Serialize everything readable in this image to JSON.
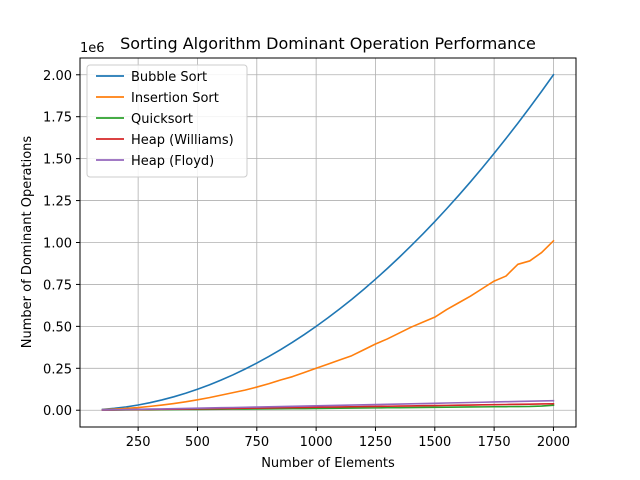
{
  "chart_data": {
    "type": "line",
    "title": "Sorting Algorithm Dominant Operation Performance",
    "xlabel": "Number of Elements",
    "ylabel": "Number of Dominant Operations",
    "y_offset_label": "1e6",
    "xlim": [
      5,
      2095
    ],
    "ylim": [
      -0.1,
      2.1
    ],
    "y_scale_factor": 1000000,
    "xticks": [
      250,
      500,
      750,
      1000,
      1250,
      1500,
      1750,
      2000
    ],
    "xtick_labels": [
      "250",
      "500",
      "750",
      "1000",
      "1250",
      "1500",
      "1750",
      "2000"
    ],
    "yticks": [
      0,
      0.25,
      0.5,
      0.75,
      1.0,
      1.25,
      1.5,
      1.75,
      2.0
    ],
    "ytick_labels": [
      "0.00",
      "0.25",
      "0.50",
      "0.75",
      "1.00",
      "1.25",
      "1.50",
      "1.75",
      "2.00"
    ],
    "grid": true,
    "legend_position": "top-left",
    "x": [
      100,
      150,
      200,
      250,
      300,
      350,
      400,
      450,
      500,
      550,
      600,
      650,
      700,
      750,
      800,
      850,
      900,
      950,
      1000,
      1050,
      1100,
      1150,
      1200,
      1250,
      1300,
      1350,
      1400,
      1450,
      1500,
      1550,
      1600,
      1650,
      1700,
      1750,
      1800,
      1850,
      1900,
      1950,
      2000
    ],
    "series": [
      {
        "name": "Bubble Sort",
        "color": "#1f77b4",
        "values": [
          0.005,
          0.0112,
          0.02,
          0.0312,
          0.045,
          0.0612,
          0.08,
          0.1012,
          0.125,
          0.1512,
          0.18,
          0.2112,
          0.245,
          0.2812,
          0.32,
          0.3612,
          0.405,
          0.4512,
          0.5,
          0.5512,
          0.605,
          0.6612,
          0.72,
          0.7812,
          0.845,
          0.9112,
          0.98,
          1.0512,
          1.125,
          1.2012,
          1.28,
          1.3612,
          1.445,
          1.5312,
          1.62,
          1.7112,
          1.805,
          1.9012,
          2.0
        ]
      },
      {
        "name": "Insertion Sort",
        "color": "#ff7f0e",
        "values": [
          0.003,
          0.006,
          0.011,
          0.016,
          0.023,
          0.031,
          0.04,
          0.05,
          0.062,
          0.075,
          0.09,
          0.105,
          0.12,
          0.138,
          0.158,
          0.18,
          0.2,
          0.225,
          0.25,
          0.275,
          0.3,
          0.325,
          0.36,
          0.395,
          0.425,
          0.46,
          0.495,
          0.525,
          0.555,
          0.6,
          0.64,
          0.68,
          0.725,
          0.77,
          0.8,
          0.87,
          0.89,
          0.94,
          1.01
        ]
      },
      {
        "name": "Quicksort",
        "color": "#2ca02c",
        "values": [
          0.0008,
          0.0012,
          0.0017,
          0.0022,
          0.0027,
          0.0032,
          0.0037,
          0.0043,
          0.0048,
          0.0054,
          0.006,
          0.0066,
          0.0072,
          0.0078,
          0.0084,
          0.009,
          0.0096,
          0.0102,
          0.0108,
          0.0115,
          0.0121,
          0.0127,
          0.0134,
          0.014,
          0.0147,
          0.0153,
          0.016,
          0.0166,
          0.0173,
          0.018,
          0.0187,
          0.0194,
          0.02,
          0.0207,
          0.0214,
          0.022,
          0.0225,
          0.025,
          0.03
        ]
      },
      {
        "name": "Heap (Williams)",
        "color": "#d62728",
        "values": [
          0.0012,
          0.002,
          0.0028,
          0.0036,
          0.0045,
          0.0054,
          0.0063,
          0.0072,
          0.0081,
          0.009,
          0.0099,
          0.0109,
          0.0118,
          0.0128,
          0.0137,
          0.0147,
          0.0157,
          0.0167,
          0.0177,
          0.0187,
          0.0197,
          0.0207,
          0.0217,
          0.0227,
          0.0237,
          0.0248,
          0.0258,
          0.0268,
          0.0279,
          0.0289,
          0.03,
          0.031,
          0.0321,
          0.0331,
          0.0342,
          0.0352,
          0.0363,
          0.0374,
          0.0385
        ]
      },
      {
        "name": "Heap (Floyd)",
        "color": "#9467bd",
        "values": [
          0.0017,
          0.0029,
          0.0041,
          0.0054,
          0.0067,
          0.008,
          0.0093,
          0.0107,
          0.0121,
          0.0135,
          0.0149,
          0.0163,
          0.0177,
          0.0191,
          0.0206,
          0.022,
          0.0235,
          0.025,
          0.0264,
          0.0279,
          0.0294,
          0.0309,
          0.0324,
          0.0339,
          0.0354,
          0.0369,
          0.0384,
          0.0399,
          0.0415,
          0.043,
          0.0445,
          0.0461,
          0.0476,
          0.0492,
          0.0507,
          0.0523,
          0.0538,
          0.0554,
          0.057
        ]
      }
    ]
  }
}
